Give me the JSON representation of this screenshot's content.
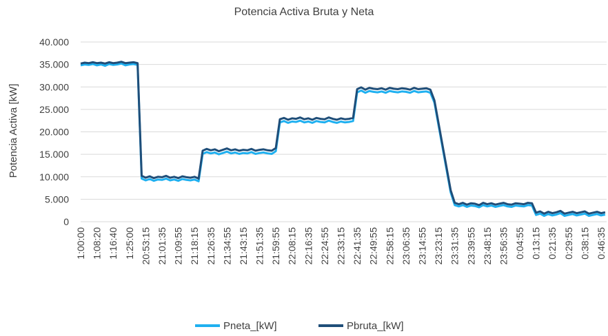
{
  "chart_data": {
    "type": "line",
    "title": "Potencia Activa Bruta y Neta",
    "y_label": "Potencia Activa [kW]",
    "categories": [
      "1:00:00",
      null,
      null,
      null,
      "1:08:20",
      null,
      null,
      null,
      "1:16:40",
      null,
      null,
      null,
      "1:25:00",
      null,
      null,
      null,
      "20:53:15",
      null,
      null,
      null,
      "21:01:35",
      null,
      null,
      null,
      "21:09:55",
      null,
      null,
      null,
      "21:18:15",
      null,
      null,
      null,
      "21:26:35",
      null,
      null,
      null,
      "21:34:55",
      null,
      null,
      null,
      "21:43:15",
      null,
      null,
      null,
      "21:51:35",
      null,
      null,
      null,
      "21:59:55",
      null,
      null,
      null,
      "22:08:15",
      null,
      null,
      null,
      "22:16:35",
      null,
      null,
      null,
      "22:24:55",
      null,
      null,
      null,
      "22:33:15",
      null,
      null,
      null,
      "22:41:35",
      null,
      null,
      null,
      "22:49:55",
      null,
      null,
      null,
      "22:58:15",
      null,
      null,
      null,
      "23:06:35",
      null,
      null,
      null,
      "23:14:55",
      null,
      null,
      null,
      "23:23:15",
      null,
      null,
      null,
      "23:31:35",
      null,
      null,
      null,
      "23:39:55",
      null,
      null,
      null,
      "23:48:15",
      null,
      null,
      null,
      "23:56:35",
      null,
      null,
      null,
      "0:04:55",
      null,
      null,
      null,
      "0:13:15",
      null,
      null,
      null,
      "0:21:35",
      null,
      null,
      null,
      "0:29:55",
      null,
      null,
      null,
      "0:38:15",
      null,
      null,
      null,
      "0:46:35",
      null
    ],
    "series": [
      {
        "name": "Pneta_[kW]",
        "color": "#1fb0f0",
        "values": [
          34800,
          35000,
          34900,
          35100,
          34800,
          35000,
          34700,
          35100,
          34900,
          35000,
          35200,
          34800,
          35000,
          35100,
          34900,
          9600,
          9200,
          9500,
          9100,
          9400,
          9300,
          9600,
          9200,
          9400,
          9100,
          9500,
          9300,
          9200,
          9400,
          9000,
          15100,
          15500,
          15200,
          15400,
          15000,
          15300,
          15600,
          15200,
          15400,
          15100,
          15300,
          15200,
          15500,
          15100,
          15300,
          15400,
          15200,
          15100,
          15700,
          22100,
          22400,
          22000,
          22300,
          22200,
          22500,
          22100,
          22300,
          22000,
          22400,
          22200,
          22100,
          22500,
          22200,
          22000,
          22300,
          22100,
          22200,
          22400,
          28800,
          29200,
          28700,
          29100,
          28900,
          28800,
          29000,
          28700,
          29100,
          28900,
          28800,
          29000,
          28900,
          28700,
          29100,
          28800,
          28900,
          29000,
          28700,
          26500,
          21500,
          16500,
          11500,
          6500,
          3700,
          3400,
          3700,
          3300,
          3600,
          3500,
          3200,
          3700,
          3400,
          3600,
          3300,
          3500,
          3700,
          3400,
          3300,
          3600,
          3500,
          3400,
          3700,
          3600,
          1500,
          1800,
          1300,
          1700,
          1400,
          1600,
          1900,
          1300,
          1500,
          1700,
          1400,
          1600,
          1800,
          1300,
          1500,
          1700,
          1400,
          1600
        ]
      },
      {
        "name": "Pbruta_[kW]",
        "color": "#1f4e79",
        "values": [
          35200,
          35400,
          35300,
          35500,
          35300,
          35400,
          35200,
          35500,
          35300,
          35400,
          35600,
          35300,
          35400,
          35500,
          35300,
          10200,
          9800,
          10100,
          9700,
          10000,
          9900,
          10200,
          9800,
          10000,
          9700,
          10100,
          9900,
          9800,
          10000,
          9600,
          15800,
          16200,
          15900,
          16100,
          15700,
          16000,
          16300,
          15900,
          16100,
          15800,
          16000,
          15900,
          16200,
          15800,
          16000,
          16100,
          15900,
          15800,
          16400,
          22800,
          23100,
          22700,
          23000,
          22900,
          23200,
          22800,
          23000,
          22700,
          23100,
          22900,
          22800,
          23200,
          22900,
          22700,
          23000,
          22800,
          22900,
          23100,
          29500,
          29900,
          29400,
          29800,
          29600,
          29500,
          29700,
          29400,
          29800,
          29600,
          29500,
          29700,
          29600,
          29400,
          29800,
          29500,
          29600,
          29700,
          29400,
          27000,
          22000,
          17000,
          12000,
          7000,
          4200,
          3900,
          4200,
          3800,
          4100,
          4000,
          3700,
          4200,
          3900,
          4100,
          3800,
          4000,
          4200,
          3900,
          3800,
          4100,
          4000,
          3900,
          4200,
          4100,
          2000,
          2300,
          1800,
          2200,
          1900,
          2100,
          2400,
          1800,
          2000,
          2200,
          1900,
          2100,
          2300,
          1800,
          2000,
          2200,
          1900,
          2100
        ]
      }
    ],
    "ylim": [
      0,
      40000
    ],
    "yticks": [
      0,
      {
        "value": 5000,
        "label": "5.000"
      },
      {
        "value": 10000,
        "label": "10.000"
      },
      {
        "value": 15000,
        "label": "15.000"
      },
      {
        "value": 20000,
        "label": "20.000"
      },
      {
        "value": 25000,
        "label": "25.000"
      },
      {
        "value": 30000,
        "label": "30.000"
      },
      {
        "value": 35000,
        "label": "35.000"
      },
      {
        "value": 40000,
        "label": "40.000"
      }
    ],
    "grid": true,
    "legend": "bottom"
  }
}
